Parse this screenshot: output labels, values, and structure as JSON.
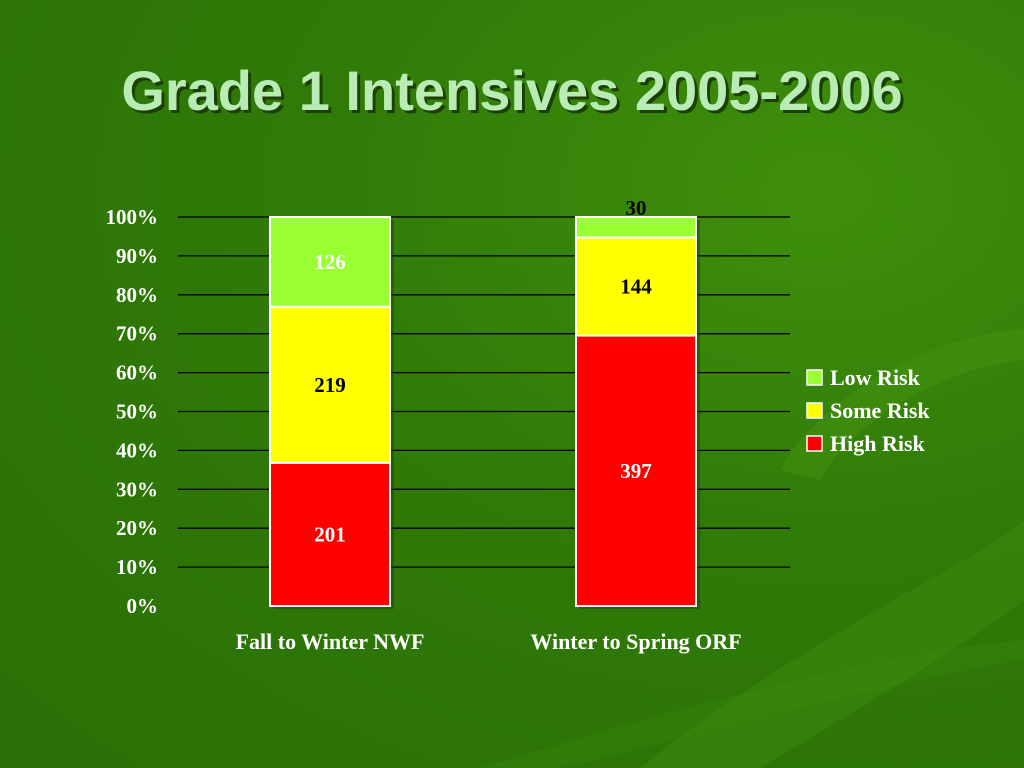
{
  "slide": {
    "title": "Grade 1 Intensives 2005-2006"
  },
  "colors": {
    "low_risk": "#99ff33",
    "some_risk": "#ffff00",
    "high_risk": "#ff0000",
    "gridline": "#000000",
    "text": "#ffffff"
  },
  "chart_data": {
    "type": "bar",
    "stacked": "percent",
    "title": "",
    "xlabel": "",
    "ylabel": "",
    "ylim": [
      0,
      100
    ],
    "yticks": [
      "0%",
      "10%",
      "20%",
      "30%",
      "40%",
      "50%",
      "60%",
      "70%",
      "80%",
      "90%",
      "100%"
    ],
    "grid": true,
    "legend_position": "right",
    "categories": [
      "Fall to Winter NWF",
      "Winter to Spring ORF"
    ],
    "series": [
      {
        "name": "High Risk",
        "values": [
          201,
          397
        ],
        "color": "#ff0000"
      },
      {
        "name": "Some Risk",
        "values": [
          219,
          144
        ],
        "color": "#ffff00"
      },
      {
        "name": "Low Risk",
        "values": [
          126,
          30
        ],
        "color": "#99ff33"
      }
    ],
    "legend_order": [
      "Low Risk",
      "Some Risk",
      "High Risk"
    ]
  }
}
